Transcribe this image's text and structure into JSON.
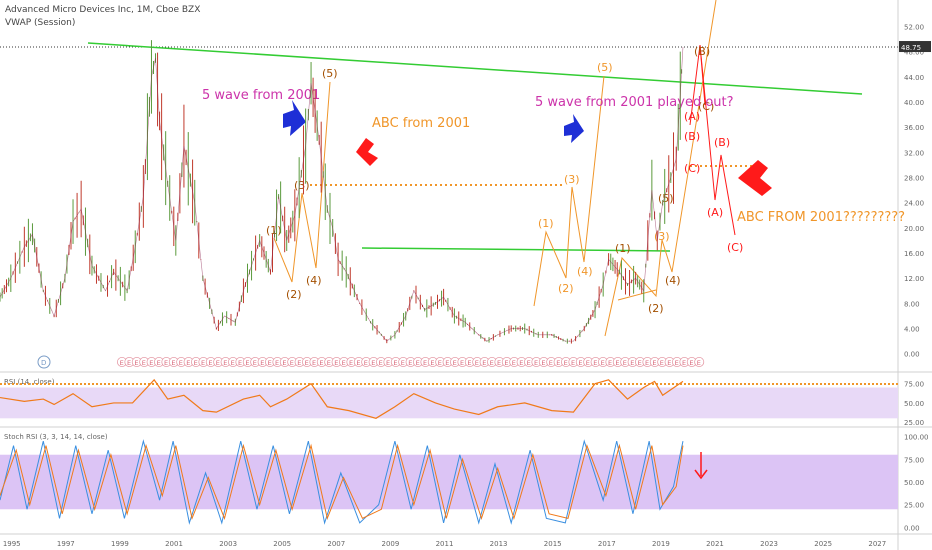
{
  "header": {
    "symbol_title": "Advanced Micro Devices Inc, 1M, Cboe BZX",
    "vwap_label": "VWAP (Session)"
  },
  "chart_data": {
    "type": "line",
    "price_axis_ticks": [
      "52.00",
      "48.00",
      "44.00",
      "40.00",
      "36.00",
      "32.00",
      "28.00",
      "24.00",
      "20.00",
      "16.00",
      "12.00",
      "8.00",
      "4.00",
      "0.00"
    ],
    "price_ylim": [
      -1,
      54
    ],
    "last_price_label": "48.75",
    "last_price": 48.75,
    "x_ticks": [
      "1995",
      "1997",
      "1999",
      "2001",
      "2003",
      "2005",
      "2007",
      "2009",
      "2011",
      "2013",
      "2015",
      "2017",
      "2019",
      "2021",
      "2023",
      "2025",
      "2027"
    ],
    "x_range": [
      1994.6,
      2027.8
    ],
    "price_series": [
      [
        1994.6,
        9
      ],
      [
        1995.0,
        12
      ],
      [
        1995.5,
        17
      ],
      [
        1995.8,
        19
      ],
      [
        1996.2,
        10
      ],
      [
        1996.6,
        6
      ],
      [
        1997.0,
        12
      ],
      [
        1997.3,
        21
      ],
      [
        1997.6,
        23
      ],
      [
        1998.0,
        14
      ],
      [
        1998.5,
        10
      ],
      [
        1998.8,
        13
      ],
      [
        1999.3,
        10
      ],
      [
        1999.6,
        17
      ],
      [
        1999.9,
        25
      ],
      [
        2000.2,
        44
      ],
      [
        2000.35,
        47
      ],
      [
        2000.5,
        37
      ],
      [
        2000.8,
        27
      ],
      [
        2001.1,
        18
      ],
      [
        2001.4,
        33
      ],
      [
        2001.8,
        24
      ],
      [
        2002.1,
        12
      ],
      [
        2002.6,
        4
      ],
      [
        2002.9,
        6
      ],
      [
        2003.3,
        5
      ],
      [
        2003.6,
        10
      ],
      [
        2003.9,
        14
      ],
      [
        2004.2,
        18
      ],
      [
        2004.6,
        13
      ],
      [
        2004.9,
        25
      ],
      [
        2005.2,
        18
      ],
      [
        2005.5,
        22
      ],
      [
        2005.9,
        33
      ],
      [
        2006.1,
        43
      ],
      [
        2006.4,
        34
      ],
      [
        2006.7,
        23
      ],
      [
        2006.9,
        20
      ],
      [
        2007.1,
        15
      ],
      [
        2007.4,
        13
      ],
      [
        2007.7,
        10
      ],
      [
        2007.9,
        8
      ],
      [
        2008.3,
        5
      ],
      [
        2008.7,
        3
      ],
      [
        2008.9,
        2
      ],
      [
        2009.2,
        3
      ],
      [
        2009.6,
        6
      ],
      [
        2009.9,
        10
      ],
      [
        2010.3,
        7
      ],
      [
        2010.7,
        8
      ],
      [
        2011.0,
        9
      ],
      [
        2011.4,
        6
      ],
      [
        2011.8,
        5
      ],
      [
        2012.3,
        3
      ],
      [
        2012.6,
        2
      ],
      [
        2013.0,
        3
      ],
      [
        2013.5,
        4
      ],
      [
        2014.0,
        4
      ],
      [
        2014.5,
        3
      ],
      [
        2015.0,
        3
      ],
      [
        2015.5,
        2
      ],
      [
        2015.8,
        2
      ],
      [
        2016.2,
        4
      ],
      [
        2016.6,
        7
      ],
      [
        2016.9,
        11
      ],
      [
        2017.1,
        15
      ],
      [
        2017.5,
        13
      ],
      [
        2017.8,
        11
      ],
      [
        2018.1,
        12
      ],
      [
        2018.4,
        10
      ],
      [
        2018.7,
        26
      ],
      [
        2018.9,
        18
      ],
      [
        2019.1,
        24
      ],
      [
        2019.4,
        28
      ],
      [
        2019.6,
        31
      ],
      [
        2019.75,
        41
      ],
      [
        2019.85,
        48.75
      ]
    ],
    "rsi_panel": {
      "title": "RSI (14, close)",
      "ticks": [
        "75.00",
        "50.00",
        "25.00"
      ],
      "ylim": [
        20,
        85
      ],
      "band": [
        30,
        70
      ],
      "series": [
        [
          1994.6,
          57
        ],
        [
          1995.5,
          52
        ],
        [
          1996.2,
          55
        ],
        [
          1996.6,
          48
        ],
        [
          1997.3,
          62
        ],
        [
          1998.0,
          45
        ],
        [
          1998.8,
          50
        ],
        [
          1999.5,
          50
        ],
        [
          2000.3,
          80
        ],
        [
          2000.8,
          55
        ],
        [
          2001.4,
          60
        ],
        [
          2002.1,
          40
        ],
        [
          2002.6,
          38
        ],
        [
          2003.6,
          55
        ],
        [
          2004.2,
          60
        ],
        [
          2004.6,
          45
        ],
        [
          2005.2,
          55
        ],
        [
          2006.1,
          75
        ],
        [
          2006.7,
          45
        ],
        [
          2007.5,
          40
        ],
        [
          2008.5,
          30
        ],
        [
          2009.2,
          45
        ],
        [
          2009.9,
          62
        ],
        [
          2010.7,
          50
        ],
        [
          2011.4,
          42
        ],
        [
          2012.3,
          35
        ],
        [
          2013.0,
          45
        ],
        [
          2014.0,
          50
        ],
        [
          2015.0,
          40
        ],
        [
          2015.8,
          38
        ],
        [
          2016.6,
          75
        ],
        [
          2017.1,
          80
        ],
        [
          2017.8,
          55
        ],
        [
          2018.4,
          70
        ],
        [
          2018.8,
          78
        ],
        [
          2019.1,
          60
        ],
        [
          2019.6,
          72
        ],
        [
          2019.85,
          78
        ]
      ]
    },
    "stoch_rsi_panel": {
      "title": "Stoch RSI (3, 3, 14, 14, close)",
      "ticks": [
        "100.00",
        "75.00",
        "50.00",
        "25.00",
        "0.00"
      ],
      "ylim": [
        -5,
        105
      ],
      "band": [
        20,
        80
      ],
      "k_series": [
        [
          1994.6,
          30
        ],
        [
          1995.1,
          90
        ],
        [
          1995.6,
          20
        ],
        [
          1996.2,
          95
        ],
        [
          1996.8,
          10
        ],
        [
          1997.4,
          90
        ],
        [
          1998.0,
          15
        ],
        [
          1998.6,
          85
        ],
        [
          1999.2,
          10
        ],
        [
          1999.9,
          95
        ],
        [
          2000.5,
          30
        ],
        [
          2001.0,
          95
        ],
        [
          2001.6,
          5
        ],
        [
          2002.2,
          60
        ],
        [
          2002.8,
          5
        ],
        [
          2003.5,
          95
        ],
        [
          2004.1,
          20
        ],
        [
          2004.7,
          90
        ],
        [
          2005.3,
          15
        ],
        [
          2006.0,
          95
        ],
        [
          2006.6,
          5
        ],
        [
          2007.2,
          60
        ],
        [
          2007.9,
          5
        ],
        [
          2008.6,
          25
        ],
        [
          2009.2,
          95
        ],
        [
          2009.8,
          20
        ],
        [
          2010.4,
          90
        ],
        [
          2011.0,
          5
        ],
        [
          2011.6,
          80
        ],
        [
          2012.3,
          5
        ],
        [
          2012.9,
          70
        ],
        [
          2013.5,
          5
        ],
        [
          2014.2,
          85
        ],
        [
          2014.8,
          10
        ],
        [
          2015.5,
          5
        ],
        [
          2016.2,
          95
        ],
        [
          2016.9,
          30
        ],
        [
          2017.4,
          95
        ],
        [
          2018.0,
          15
        ],
        [
          2018.6,
          95
        ],
        [
          2019.0,
          20
        ],
        [
          2019.5,
          45
        ],
        [
          2019.85,
          95
        ]
      ],
      "d_series": [
        [
          1994.6,
          35
        ],
        [
          1995.2,
          85
        ],
        [
          1995.7,
          25
        ],
        [
          1996.3,
          90
        ],
        [
          1996.9,
          15
        ],
        [
          1997.5,
          85
        ],
        [
          1998.1,
          20
        ],
        [
          1998.7,
          80
        ],
        [
          1999.3,
          15
        ],
        [
          2000.0,
          90
        ],
        [
          2000.6,
          35
        ],
        [
          2001.1,
          90
        ],
        [
          2001.7,
          10
        ],
        [
          2002.3,
          55
        ],
        [
          2002.9,
          10
        ],
        [
          2003.6,
          90
        ],
        [
          2004.2,
          25
        ],
        [
          2004.8,
          85
        ],
        [
          2005.4,
          20
        ],
        [
          2006.1,
          90
        ],
        [
          2006.7,
          10
        ],
        [
          2007.3,
          55
        ],
        [
          2008.0,
          10
        ],
        [
          2008.7,
          20
        ],
        [
          2009.3,
          90
        ],
        [
          2009.9,
          25
        ],
        [
          2010.5,
          85
        ],
        [
          2011.1,
          10
        ],
        [
          2011.7,
          75
        ],
        [
          2012.4,
          10
        ],
        [
          2013.0,
          65
        ],
        [
          2013.6,
          10
        ],
        [
          2014.3,
          80
        ],
        [
          2014.9,
          15
        ],
        [
          2015.6,
          10
        ],
        [
          2016.3,
          90
        ],
        [
          2017.0,
          35
        ],
        [
          2017.5,
          90
        ],
        [
          2018.1,
          20
        ],
        [
          2018.7,
          90
        ],
        [
          2019.1,
          25
        ],
        [
          2019.6,
          45
        ],
        [
          2019.85,
          90
        ]
      ]
    }
  },
  "annotations": {
    "text1": "5 wave from 2001",
    "text2": "ABC from 2001",
    "text3": "5 wave from 2001 played out?",
    "text4": "ABC FROM 2001?????????",
    "earnings_marker": "E",
    "dividend_marker": "D",
    "split_marker": "S",
    "colors": {
      "magenta": "#cc33aa",
      "orange": "#f0962a",
      "blue": "#1e2fd6",
      "red": "#ff1a1a",
      "green": "#33cc33",
      "brown": "#a34f00"
    },
    "wave_labels": [
      "(1)",
      "(2)",
      "(3)",
      "(4)",
      "(5)",
      "(A)",
      "(B)",
      "(C)"
    ]
  }
}
